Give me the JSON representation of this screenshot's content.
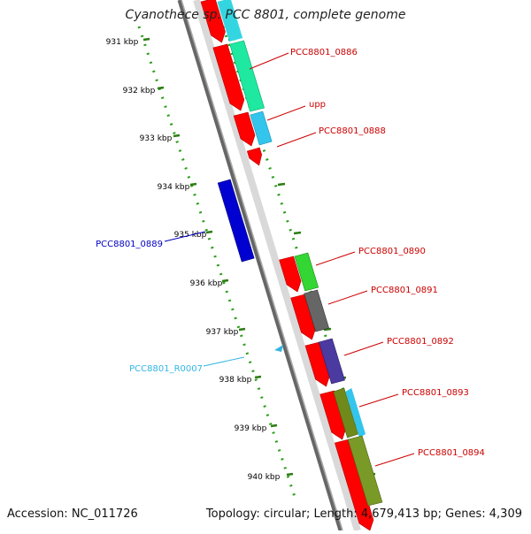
{
  "title": "Cyanothece sp. PCC 8801, complete genome",
  "footer": {
    "accession": "Accession: NC_011726",
    "summary": "Topology: circular; Length: 4,679,413 bp; Genes: 4,309"
  },
  "colors": {
    "backbone": "#8a8a8a",
    "tick_major": "#2b7d12",
    "tick_minor": "#2b9e1a",
    "gene_forward": "#ff0000",
    "gene_reverse": "#0000d0",
    "rna": "#33b5e5",
    "label_default": "#cc0000",
    "label_reverse": "#0000c0",
    "label_rna": "#33b5e5"
  },
  "kbp_ticks": [
    "931 kbp",
    "932 kbp",
    "933 kbp",
    "934 kbp",
    "935 kbp",
    "936 kbp",
    "937 kbp",
    "938 kbp",
    "939 kbp",
    "940 kbp"
  ],
  "genes": [
    {
      "name": "PCC8801_0886",
      "kind": "forward"
    },
    {
      "name": "upp",
      "kind": "forward"
    },
    {
      "name": "PCC8801_0888",
      "kind": "forward"
    },
    {
      "name": "PCC8801_0889",
      "kind": "reverse"
    },
    {
      "name": "PCC8801_0890",
      "kind": "forward"
    },
    {
      "name": "PCC8801_0891",
      "kind": "forward"
    },
    {
      "name": "PCC8801_R0007",
      "kind": "rna"
    },
    {
      "name": "PCC8801_0892",
      "kind": "forward"
    },
    {
      "name": "PCC8801_0893",
      "kind": "forward"
    },
    {
      "name": "PCC8801_0894",
      "kind": "forward"
    }
  ]
}
